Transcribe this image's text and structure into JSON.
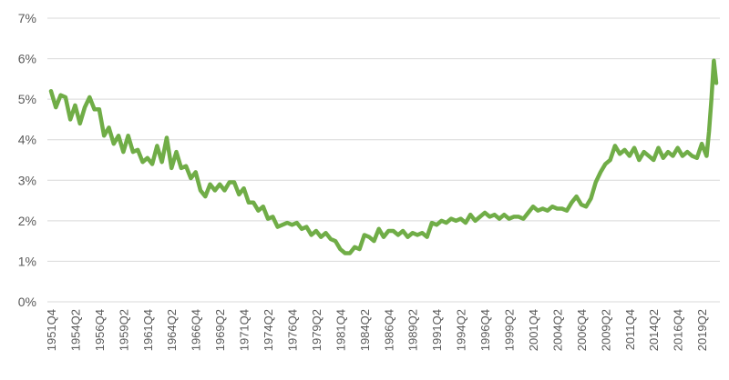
{
  "chart_data": {
    "type": "line",
    "title": "",
    "xlabel": "",
    "ylabel": "",
    "ylim": [
      0,
      7
    ],
    "y_ticks": [
      "0%",
      "1%",
      "2%",
      "3%",
      "4%",
      "5%",
      "6%",
      "7%"
    ],
    "x_tick_labels": [
      "1951Q4",
      "1954Q2",
      "1956Q4",
      "1959Q2",
      "1961Q4",
      "1964Q2",
      "1966Q4",
      "1969Q2",
      "1971Q4",
      "1974Q2",
      "1976Q4",
      "1979Q2",
      "1981Q4",
      "1984Q2",
      "1986Q4",
      "1989Q2",
      "1991Q4",
      "1994Q2",
      "1996Q4",
      "1999Q2",
      "2001Q4",
      "2004Q2",
      "2006Q4",
      "2009Q2",
      "2011Q4",
      "2014Q2",
      "2016Q4",
      "2019Q2"
    ],
    "grid": true,
    "legend": "none",
    "series": [
      {
        "color": "#70ad47",
        "points": [
          [
            "1951Q4",
            5.2
          ],
          [
            "1952Q2",
            4.8
          ],
          [
            "1952Q4",
            5.1
          ],
          [
            "1953Q2",
            5.05
          ],
          [
            "1953Q4",
            4.5
          ],
          [
            "1954Q2",
            4.85
          ],
          [
            "1954Q4",
            4.4
          ],
          [
            "1955Q2",
            4.8
          ],
          [
            "1955Q4",
            5.05
          ],
          [
            "1956Q2",
            4.75
          ],
          [
            "1956Q4",
            4.75
          ],
          [
            "1957Q2",
            4.1
          ],
          [
            "1957Q4",
            4.3
          ],
          [
            "1958Q2",
            3.9
          ],
          [
            "1958Q4",
            4.1
          ],
          [
            "1959Q2",
            3.7
          ],
          [
            "1959Q4",
            4.1
          ],
          [
            "1960Q2",
            3.7
          ],
          [
            "1960Q4",
            3.75
          ],
          [
            "1961Q2",
            3.45
          ],
          [
            "1961Q4",
            3.55
          ],
          [
            "1962Q2",
            3.4
          ],
          [
            "1962Q4",
            3.85
          ],
          [
            "1963Q2",
            3.45
          ],
          [
            "1963Q4",
            4.05
          ],
          [
            "1964Q2",
            3.3
          ],
          [
            "1964Q4",
            3.7
          ],
          [
            "1965Q2",
            3.3
          ],
          [
            "1965Q4",
            3.35
          ],
          [
            "1966Q2",
            3.05
          ],
          [
            "1966Q4",
            3.2
          ],
          [
            "1967Q2",
            2.75
          ],
          [
            "1967Q4",
            2.6
          ],
          [
            "1968Q2",
            2.9
          ],
          [
            "1968Q4",
            2.75
          ],
          [
            "1969Q2",
            2.9
          ],
          [
            "1969Q4",
            2.75
          ],
          [
            "1970Q2",
            2.95
          ],
          [
            "1970Q4",
            2.95
          ],
          [
            "1971Q2",
            2.65
          ],
          [
            "1971Q4",
            2.8
          ],
          [
            "1972Q2",
            2.45
          ],
          [
            "1972Q4",
            2.45
          ],
          [
            "1973Q2",
            2.25
          ],
          [
            "1973Q4",
            2.35
          ],
          [
            "1974Q2",
            2.05
          ],
          [
            "1974Q4",
            2.1
          ],
          [
            "1975Q2",
            1.85
          ],
          [
            "1975Q4",
            1.9
          ],
          [
            "1976Q2",
            1.95
          ],
          [
            "1976Q4",
            1.9
          ],
          [
            "1977Q2",
            1.95
          ],
          [
            "1977Q4",
            1.8
          ],
          [
            "1978Q2",
            1.85
          ],
          [
            "1978Q4",
            1.65
          ],
          [
            "1979Q2",
            1.75
          ],
          [
            "1979Q4",
            1.6
          ],
          [
            "1980Q2",
            1.7
          ],
          [
            "1980Q4",
            1.55
          ],
          [
            "1981Q2",
            1.5
          ],
          [
            "1981Q4",
            1.3
          ],
          [
            "1982Q2",
            1.2
          ],
          [
            "1982Q4",
            1.2
          ],
          [
            "1983Q2",
            1.35
          ],
          [
            "1983Q4",
            1.3
          ],
          [
            "1984Q2",
            1.65
          ],
          [
            "1984Q4",
            1.6
          ],
          [
            "1985Q2",
            1.5
          ],
          [
            "1985Q4",
            1.8
          ],
          [
            "1986Q2",
            1.6
          ],
          [
            "1986Q4",
            1.75
          ],
          [
            "1987Q2",
            1.75
          ],
          [
            "1987Q4",
            1.65
          ],
          [
            "1988Q2",
            1.75
          ],
          [
            "1988Q4",
            1.6
          ],
          [
            "1989Q2",
            1.7
          ],
          [
            "1989Q4",
            1.65
          ],
          [
            "1990Q2",
            1.7
          ],
          [
            "1990Q4",
            1.6
          ],
          [
            "1991Q2",
            1.95
          ],
          [
            "1991Q4",
            1.9
          ],
          [
            "1992Q2",
            2.0
          ],
          [
            "1992Q4",
            1.95
          ],
          [
            "1993Q2",
            2.05
          ],
          [
            "1993Q4",
            2.0
          ],
          [
            "1994Q2",
            2.05
          ],
          [
            "1994Q4",
            1.95
          ],
          [
            "1995Q2",
            2.15
          ],
          [
            "1995Q4",
            2.0
          ],
          [
            "1996Q2",
            2.1
          ],
          [
            "1996Q4",
            2.2
          ],
          [
            "1997Q2",
            2.1
          ],
          [
            "1997Q4",
            2.15
          ],
          [
            "1998Q2",
            2.05
          ],
          [
            "1998Q4",
            2.15
          ],
          [
            "1999Q2",
            2.05
          ],
          [
            "1999Q4",
            2.1
          ],
          [
            "2000Q2",
            2.1
          ],
          [
            "2000Q4",
            2.05
          ],
          [
            "2001Q2",
            2.2
          ],
          [
            "2001Q4",
            2.35
          ],
          [
            "2002Q2",
            2.25
          ],
          [
            "2002Q4",
            2.3
          ],
          [
            "2003Q2",
            2.25
          ],
          [
            "2003Q4",
            2.35
          ],
          [
            "2004Q2",
            2.3
          ],
          [
            "2004Q4",
            2.3
          ],
          [
            "2005Q2",
            2.25
          ],
          [
            "2005Q4",
            2.45
          ],
          [
            "2006Q2",
            2.6
          ],
          [
            "2006Q4",
            2.4
          ],
          [
            "2007Q2",
            2.35
          ],
          [
            "2007Q4",
            2.55
          ],
          [
            "2008Q2",
            2.95
          ],
          [
            "2008Q4",
            3.2
          ],
          [
            "2009Q2",
            3.4
          ],
          [
            "2009Q4",
            3.5
          ],
          [
            "2010Q2",
            3.85
          ],
          [
            "2010Q4",
            3.65
          ],
          [
            "2011Q2",
            3.75
          ],
          [
            "2011Q4",
            3.6
          ],
          [
            "2012Q2",
            3.8
          ],
          [
            "2012Q4",
            3.5
          ],
          [
            "2013Q2",
            3.7
          ],
          [
            "2013Q4",
            3.6
          ],
          [
            "2014Q2",
            3.5
          ],
          [
            "2014Q4",
            3.8
          ],
          [
            "2015Q2",
            3.55
          ],
          [
            "2015Q4",
            3.7
          ],
          [
            "2016Q2",
            3.6
          ],
          [
            "2016Q4",
            3.8
          ],
          [
            "2017Q2",
            3.6
          ],
          [
            "2017Q4",
            3.7
          ],
          [
            "2018Q2",
            3.6
          ],
          [
            "2018Q4",
            3.55
          ],
          [
            "2019Q2",
            3.9
          ],
          [
            "2019Q4",
            3.6
          ],
          [
            "2020Q1",
            4.2
          ],
          [
            "2020Q2",
            5.0
          ],
          [
            "2020Q3",
            5.95
          ],
          [
            "2020Q4",
            5.4
          ]
        ]
      }
    ]
  }
}
